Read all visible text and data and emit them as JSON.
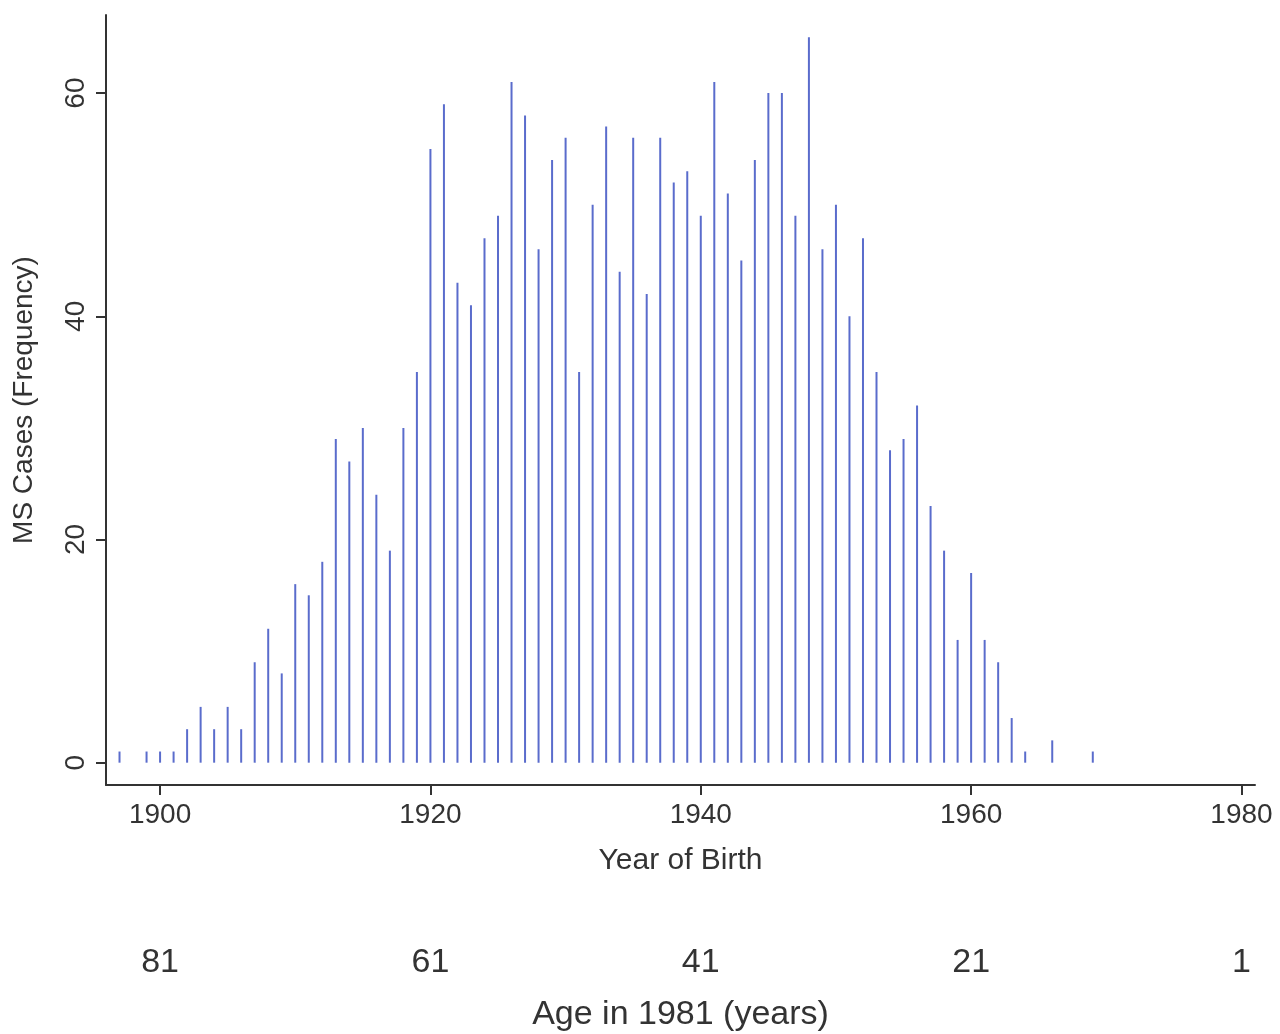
{
  "chart_data": {
    "type": "bar",
    "xlabel": "Year of Birth",
    "ylabel": "MS Cases (Frequency)",
    "x2label": "Age in 1981 (years)",
    "x": [
      1897,
      1899,
      1900,
      1901,
      1902,
      1903,
      1904,
      1905,
      1906,
      1907,
      1908,
      1909,
      1910,
      1911,
      1912,
      1913,
      1914,
      1915,
      1916,
      1917,
      1918,
      1919,
      1920,
      1921,
      1922,
      1923,
      1924,
      1925,
      1926,
      1927,
      1928,
      1929,
      1930,
      1931,
      1932,
      1933,
      1934,
      1935,
      1936,
      1937,
      1938,
      1939,
      1940,
      1941,
      1942,
      1943,
      1944,
      1945,
      1946,
      1947,
      1948,
      1949,
      1950,
      1951,
      1952,
      1953,
      1954,
      1955,
      1956,
      1957,
      1958,
      1959,
      1960,
      1961,
      1962,
      1963,
      1964,
      1966,
      1969
    ],
    "values": [
      1,
      1,
      1,
      1,
      3,
      5,
      3,
      5,
      3,
      9,
      12,
      8,
      16,
      15,
      18,
      29,
      27,
      30,
      24,
      19,
      30,
      35,
      55,
      59,
      43,
      41,
      47,
      49,
      61,
      58,
      46,
      54,
      56,
      35,
      50,
      57,
      44,
      56,
      42,
      56,
      52,
      53,
      49,
      61,
      51,
      45,
      54,
      60,
      60,
      49,
      65,
      46,
      50,
      40,
      47,
      35,
      28,
      29,
      32,
      23,
      19,
      11,
      17,
      11,
      9,
      4,
      1,
      2,
      1
    ],
    "color": "#5a6ccc",
    "xlim": [
      1896,
      1981
    ],
    "xticks": [
      1900,
      1920,
      1940,
      1960,
      1980
    ],
    "x2lim": [
      85,
      0
    ],
    "x2ticks": [
      81,
      61,
      41,
      21,
      1
    ],
    "ylim": [
      -2,
      67
    ],
    "yticks": [
      0,
      20,
      40,
      60
    ],
    "grid": false
  }
}
